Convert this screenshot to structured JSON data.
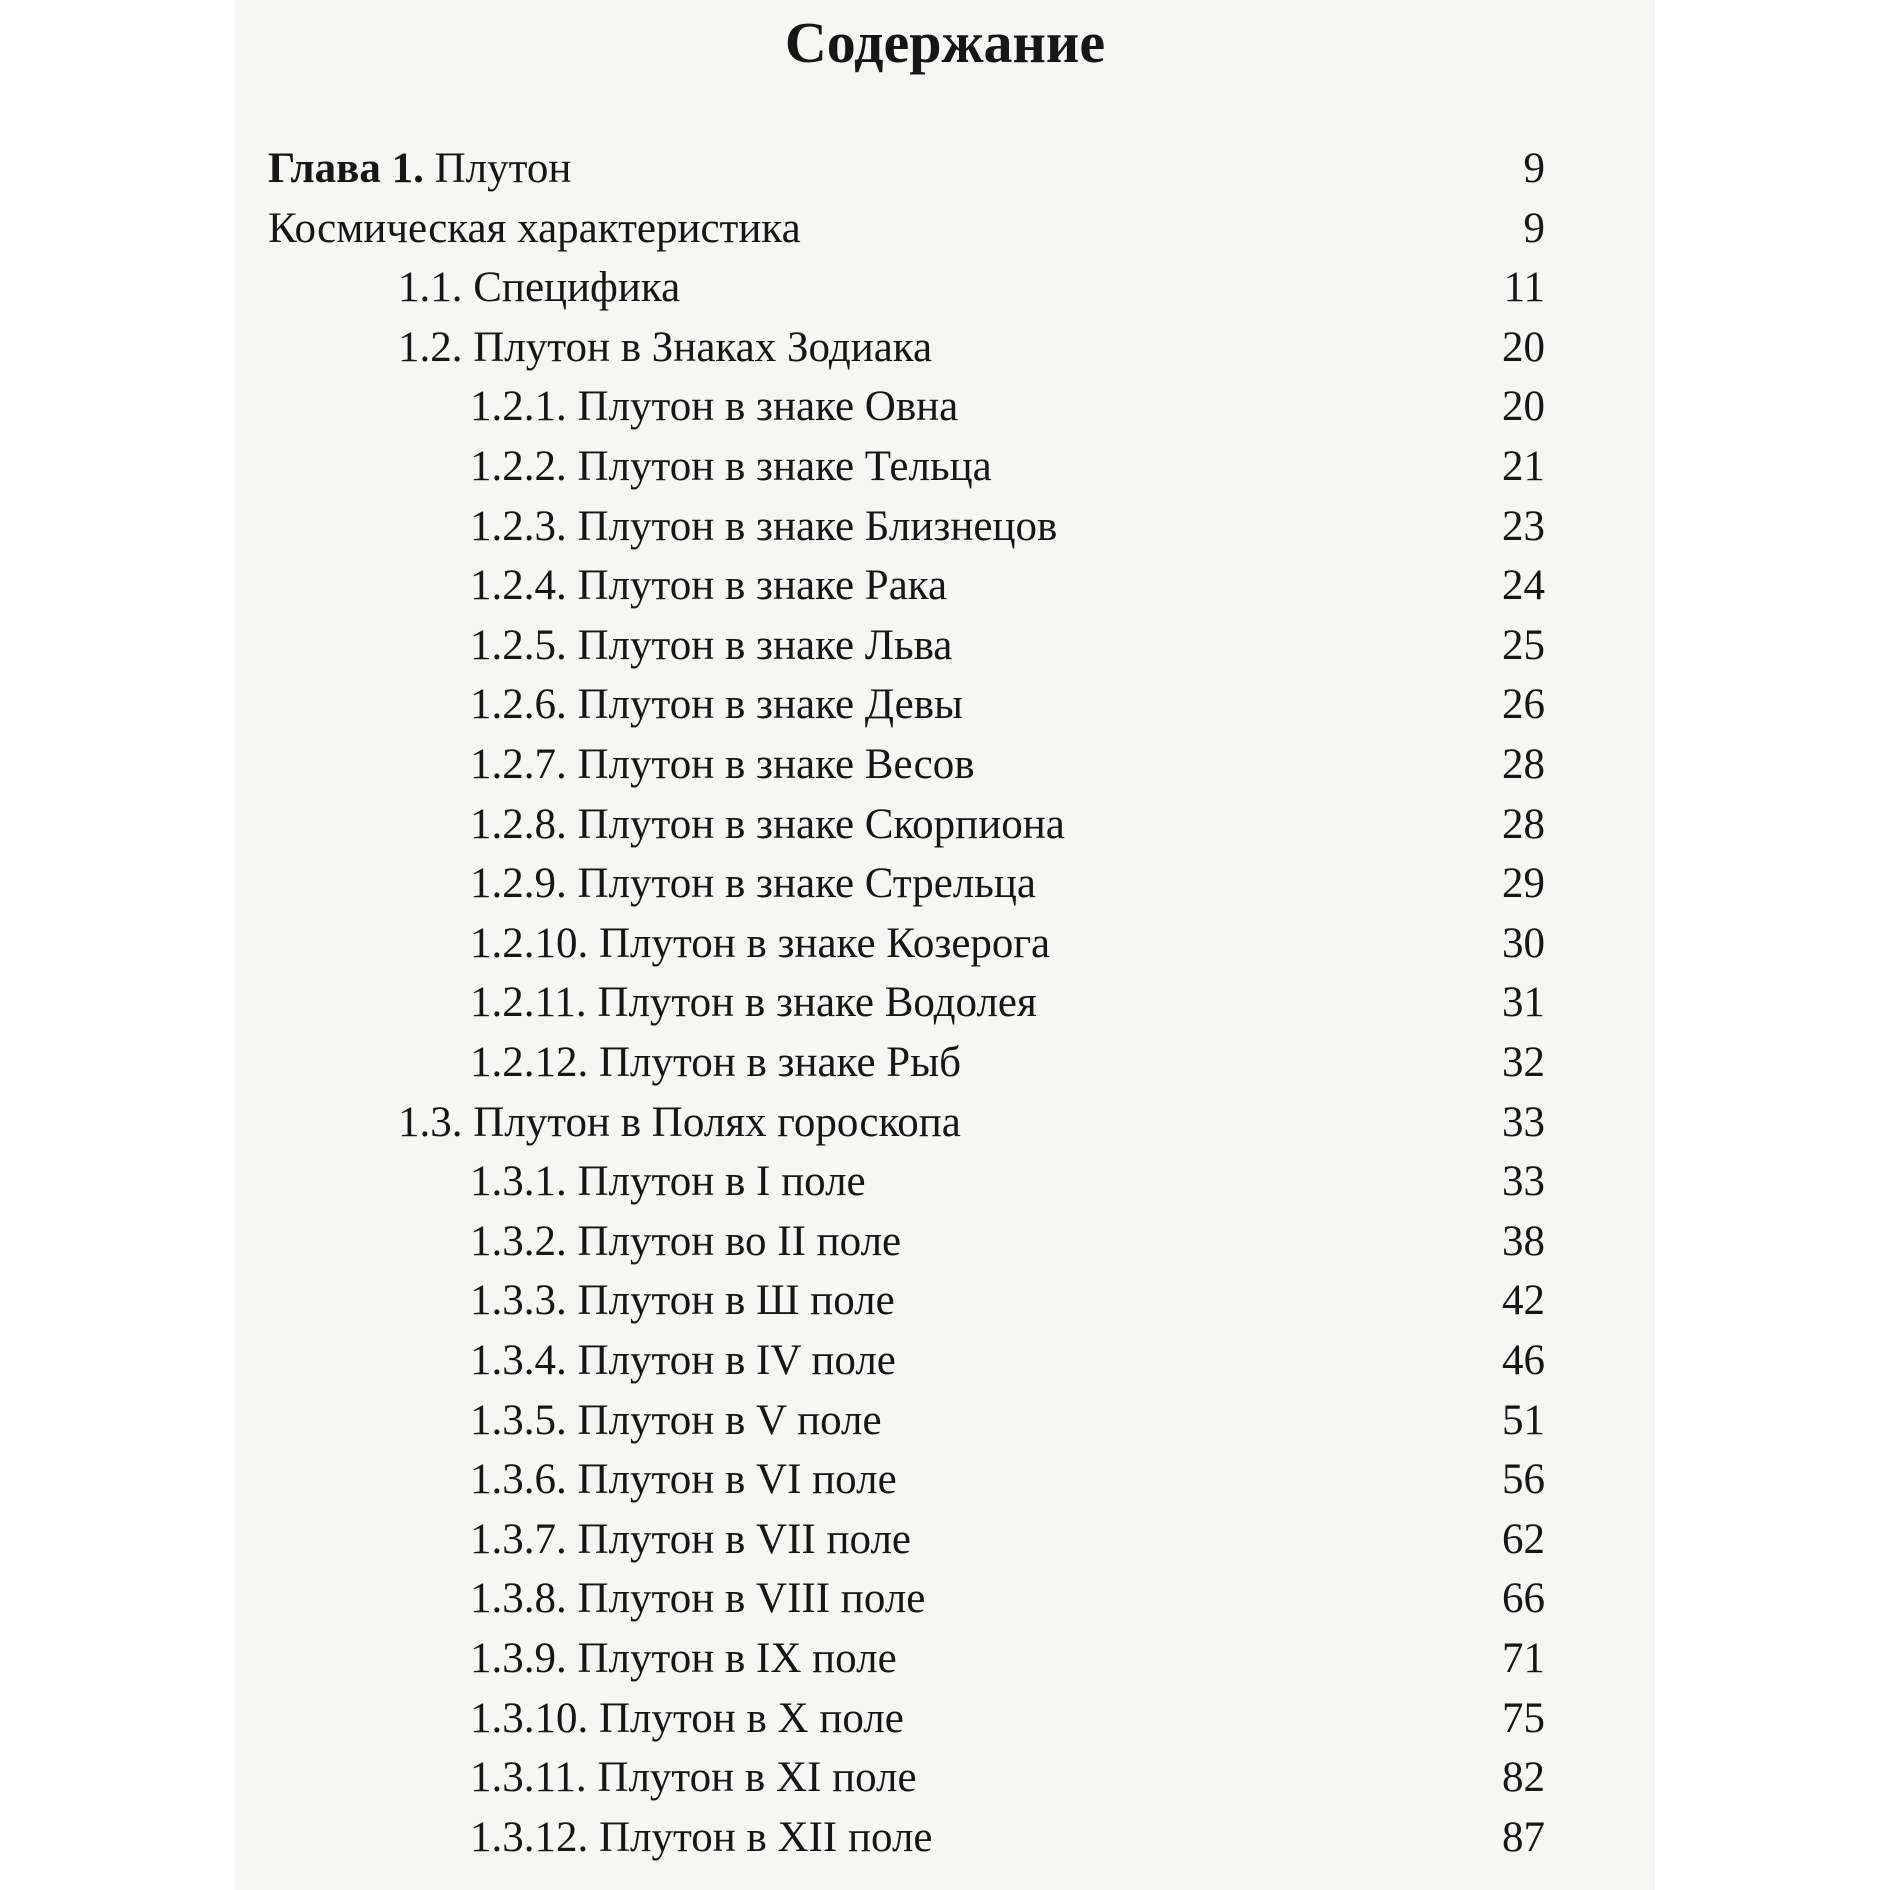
{
  "title": "Содержание",
  "chapter": {
    "label": "Глава 1.",
    "title": "Плутон",
    "page": 9
  },
  "intro": {
    "title": "Космическая характеристика",
    "page": 9
  },
  "sections": [
    {
      "title": "1.1. Специфика",
      "page": 11,
      "subsections": []
    },
    {
      "title": "1.2. Плутон в Знаках Зодиака",
      "page": 20,
      "subsections": [
        {
          "title": "1.2.1. Плутон в знаке Овна",
          "page": 20
        },
        {
          "title": "1.2.2. Плутон в знаке Тельца",
          "page": 21
        },
        {
          "title": "1.2.3. Плутон в знаке Близнецов",
          "page": 23
        },
        {
          "title": "1.2.4. Плутон в знаке Рака",
          "page": 24
        },
        {
          "title": "1.2.5. Плутон в знаке Льва",
          "page": 25
        },
        {
          "title": "1.2.6. Плутон в знаке Девы",
          "page": 26
        },
        {
          "title": "1.2.7. Плутон в знаке Весов",
          "page": 28
        },
        {
          "title": "1.2.8. Плутон в знаке Скорпиона",
          "page": 28
        },
        {
          "title": "1.2.9. Плутон в знаке Стрельца",
          "page": 29
        },
        {
          "title": "1.2.10. Плутон в знаке Козерога",
          "page": 30
        },
        {
          "title": "1.2.11. Плутон в знаке Водолея",
          "page": 31
        },
        {
          "title": "1.2.12. Плутон в знаке Рыб",
          "page": 32
        }
      ]
    },
    {
      "title": "1.3. Плутон в Полях гороскопа",
      "page": 33,
      "subsections": [
        {
          "title": "1.3.1. Плутон в I поле",
          "page": 33
        },
        {
          "title": "1.3.2. Плутон во II поле",
          "page": 38
        },
        {
          "title": "1.3.3. Плутон в Ш поле",
          "page": 42
        },
        {
          "title": "1.3.4. Плутон в IV поле",
          "page": 46
        },
        {
          "title": "1.3.5. Плутон в V поле",
          "page": 51
        },
        {
          "title": "1.3.6. Плутон в VI поле",
          "page": 56
        },
        {
          "title": "1.3.7. Плутон в VII поле",
          "page": 62
        },
        {
          "title": "1.3.8. Плутон в VIII поле",
          "page": 66
        },
        {
          "title": "1.3.9. Плутон в IX поле",
          "page": 71
        },
        {
          "title": "1.3.10. Плутон в X поле",
          "page": 75
        },
        {
          "title": "1.3.11. Плутон в XI поле",
          "page": 82
        },
        {
          "title": "1.3.12. Плутон в XII поле",
          "page": 87
        }
      ]
    }
  ]
}
